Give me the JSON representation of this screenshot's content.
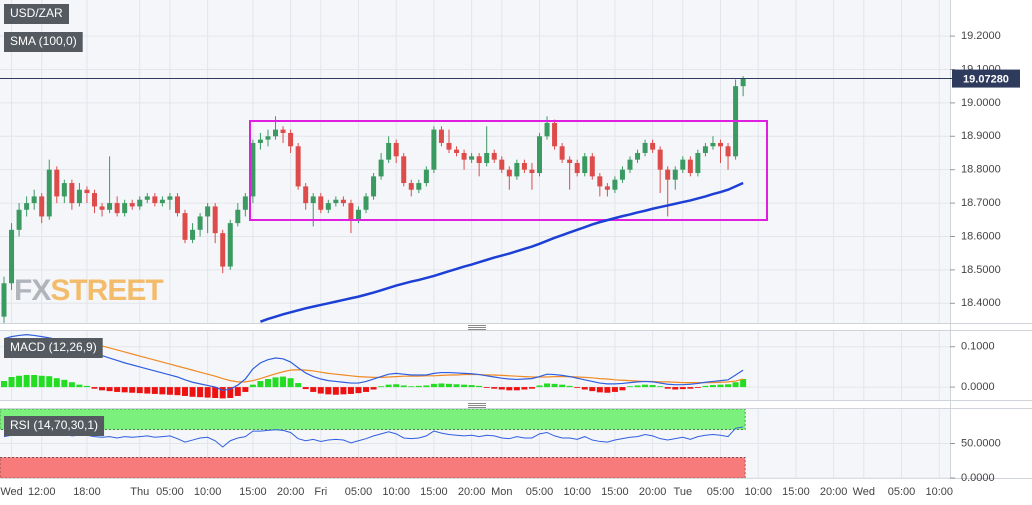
{
  "chart_data": [
    {
      "type": "candlestick",
      "title": "USD/ZAR",
      "watermark": [
        "FX",
        "STREET"
      ],
      "up_color": "#3b9a62",
      "down_color": "#dd4b4b",
      "open": [
        18.36,
        18.46,
        18.62,
        18.68,
        18.7,
        18.72,
        18.66,
        18.8,
        18.72,
        18.76,
        18.7,
        18.74,
        18.73,
        18.69,
        18.68,
        18.7,
        18.67,
        18.7,
        18.69,
        18.71,
        18.72,
        18.7,
        18.71,
        18.72,
        18.67,
        18.59,
        18.62,
        18.66,
        18.69,
        18.61,
        18.51,
        18.64,
        18.68,
        18.72,
        18.88,
        18.89,
        18.9,
        18.92,
        18.91,
        18.87,
        18.75,
        18.7,
        18.72,
        18.68,
        18.7,
        18.71,
        18.7,
        18.65,
        18.68,
        18.72,
        18.78,
        18.83,
        18.88,
        18.84,
        18.76,
        18.74,
        18.76,
        18.8,
        18.92,
        18.88,
        18.86,
        18.85,
        18.83,
        18.84,
        18.82,
        18.85,
        18.83,
        18.8,
        18.78,
        18.82,
        18.8,
        18.79,
        18.9,
        18.94,
        18.87,
        18.83,
        18.82,
        18.79,
        18.84,
        18.78,
        18.75,
        18.74,
        18.77,
        18.8,
        18.83,
        18.85,
        18.88,
        18.86,
        18.8,
        18.77,
        18.8,
        18.83,
        18.79,
        18.85,
        18.87,
        18.88,
        18.87,
        18.84,
        19.05
      ],
      "high": [
        18.48,
        18.64,
        18.7,
        18.72,
        18.74,
        18.73,
        18.83,
        18.81,
        18.77,
        18.77,
        18.76,
        18.75,
        18.74,
        18.7,
        18.84,
        18.72,
        18.71,
        18.71,
        18.72,
        18.73,
        18.73,
        18.72,
        18.73,
        18.73,
        18.68,
        18.64,
        18.67,
        18.7,
        18.7,
        18.62,
        18.65,
        18.7,
        18.73,
        18.89,
        18.91,
        18.92,
        18.96,
        18.93,
        18.92,
        18.88,
        18.76,
        18.73,
        18.73,
        18.71,
        18.72,
        18.72,
        18.71,
        18.69,
        18.73,
        18.79,
        18.85,
        18.9,
        18.89,
        18.85,
        18.77,
        18.77,
        18.81,
        18.93,
        18.93,
        18.92,
        18.87,
        18.86,
        18.85,
        18.85,
        18.93,
        18.86,
        18.84,
        18.81,
        18.83,
        18.83,
        18.82,
        18.91,
        18.96,
        18.95,
        18.88,
        18.84,
        18.83,
        18.85,
        18.85,
        18.79,
        18.76,
        18.78,
        18.81,
        18.84,
        18.86,
        18.89,
        18.89,
        18.87,
        18.81,
        18.81,
        18.84,
        18.84,
        18.86,
        18.88,
        18.9,
        18.89,
        18.88,
        19.07,
        19.08
      ],
      "low": [
        18.34,
        18.44,
        18.6,
        18.66,
        18.68,
        18.64,
        18.65,
        18.7,
        18.7,
        18.68,
        18.69,
        18.7,
        18.67,
        18.66,
        18.67,
        18.66,
        18.66,
        18.68,
        18.68,
        18.7,
        18.69,
        18.69,
        18.68,
        18.66,
        18.58,
        18.58,
        18.6,
        18.61,
        18.58,
        18.49,
        18.5,
        18.63,
        18.66,
        18.7,
        18.86,
        18.87,
        18.89,
        18.88,
        18.85,
        18.74,
        18.68,
        18.63,
        18.67,
        18.67,
        18.69,
        18.69,
        18.61,
        18.64,
        18.67,
        18.71,
        18.77,
        18.82,
        18.82,
        18.75,
        18.72,
        18.73,
        18.75,
        18.79,
        18.87,
        18.85,
        18.84,
        18.8,
        18.82,
        18.78,
        18.81,
        18.82,
        18.79,
        18.74,
        18.77,
        18.79,
        18.74,
        18.78,
        18.89,
        18.86,
        18.82,
        18.74,
        18.78,
        18.78,
        18.77,
        18.72,
        18.72,
        18.73,
        18.76,
        18.79,
        18.82,
        18.84,
        18.85,
        18.73,
        18.66,
        18.74,
        18.79,
        18.78,
        18.78,
        18.84,
        18.86,
        18.82,
        18.8,
        18.83,
        19.02
      ],
      "close": [
        18.46,
        18.62,
        18.68,
        18.7,
        18.72,
        18.66,
        18.8,
        18.72,
        18.76,
        18.7,
        18.74,
        18.73,
        18.69,
        18.68,
        18.7,
        18.67,
        18.7,
        18.69,
        18.71,
        18.72,
        18.7,
        18.71,
        18.72,
        18.67,
        18.59,
        18.62,
        18.66,
        18.69,
        18.61,
        18.51,
        18.64,
        18.68,
        18.72,
        18.88,
        18.89,
        18.9,
        18.92,
        18.91,
        18.87,
        18.75,
        18.7,
        18.72,
        18.68,
        18.7,
        18.71,
        18.7,
        18.65,
        18.68,
        18.72,
        18.78,
        18.83,
        18.88,
        18.84,
        18.76,
        18.74,
        18.76,
        18.8,
        18.92,
        18.88,
        18.86,
        18.85,
        18.83,
        18.84,
        18.82,
        18.85,
        18.83,
        18.8,
        18.78,
        18.82,
        18.8,
        18.79,
        18.9,
        18.94,
        18.87,
        18.83,
        18.82,
        18.79,
        18.84,
        18.78,
        18.75,
        18.74,
        18.77,
        18.8,
        18.83,
        18.85,
        18.88,
        18.86,
        18.8,
        18.77,
        18.8,
        18.83,
        18.79,
        18.85,
        18.87,
        18.88,
        18.87,
        18.84,
        19.05,
        19.0728
      ],
      "sma": {
        "name": "SMA (100,0)",
        "color": "#1c3fd6",
        "values": [
          null,
          null,
          null,
          null,
          null,
          null,
          null,
          null,
          null,
          null,
          null,
          null,
          null,
          null,
          null,
          null,
          null,
          null,
          null,
          null,
          null,
          null,
          null,
          null,
          null,
          null,
          null,
          null,
          null,
          null,
          null,
          null,
          null,
          null,
          18.345,
          18.353,
          18.36,
          18.367,
          18.373,
          18.379,
          18.385,
          18.39,
          18.395,
          18.4,
          18.405,
          18.41,
          18.415,
          18.42,
          18.426,
          18.432,
          18.439,
          18.446,
          18.453,
          18.459,
          18.465,
          18.47,
          18.476,
          18.482,
          18.489,
          18.496,
          18.503,
          18.51,
          18.516,
          18.523,
          18.53,
          18.537,
          18.543,
          18.549,
          18.556,
          18.563,
          18.57,
          18.578,
          18.587,
          18.596,
          18.604,
          18.612,
          18.62,
          18.628,
          18.636,
          18.643,
          18.649,
          18.655,
          18.661,
          18.666,
          18.672,
          18.677,
          18.683,
          18.688,
          18.693,
          18.698,
          18.703,
          18.708,
          18.714,
          18.72,
          18.727,
          18.733,
          18.74,
          18.75,
          18.76
        ]
      },
      "last_price": {
        "value": 19.0728,
        "label": "19.07280"
      },
      "last_price_color": "#2f3b5c",
      "ylim": [
        18.341,
        19.308
      ],
      "yticks": [
        {
          "value": 18.4,
          "label": "18.4000"
        },
        {
          "value": 18.5,
          "label": "18.5000"
        },
        {
          "value": 18.6,
          "label": "18.6000"
        },
        {
          "value": 18.7,
          "label": "18.7000"
        },
        {
          "value": 18.8,
          "label": "18.8000"
        },
        {
          "value": 18.9,
          "label": "18.9000"
        },
        {
          "value": 19.0,
          "label": "19.0000"
        },
        {
          "value": 19.1,
          "label": "19.1000"
        },
        {
          "value": 19.2,
          "label": "19.2000"
        }
      ],
      "xlim": [
        0,
        124.5
      ],
      "xticks": [
        {
          "value": 1,
          "label": "Wed"
        },
        {
          "value": 5,
          "label": "12:00"
        },
        {
          "value": 11,
          "label": "18:00"
        },
        {
          "value": 18,
          "label": "Thu"
        },
        {
          "value": 22,
          "label": "05:00"
        },
        {
          "value": 27,
          "label": "10:00"
        },
        {
          "value": 33,
          "label": "15:00"
        },
        {
          "value": 38,
          "label": "20:00"
        },
        {
          "value": 42,
          "label": "Fri"
        },
        {
          "value": 47,
          "label": "05:00"
        },
        {
          "value": 52,
          "label": "10:00"
        },
        {
          "value": 57,
          "label": "15:00"
        },
        {
          "value": 62,
          "label": "20:00"
        },
        {
          "value": 66,
          "label": "Mon"
        },
        {
          "value": 71,
          "label": "05:00"
        },
        {
          "value": 76,
          "label": "10:00"
        },
        {
          "value": 81,
          "label": "15:00"
        },
        {
          "value": 86,
          "label": "20:00"
        },
        {
          "value": 90,
          "label": "Tue"
        },
        {
          "value": 95,
          "label": "05:00"
        },
        {
          "value": 100,
          "label": "10:00"
        },
        {
          "value": 105,
          "label": "15:00"
        },
        {
          "value": 110,
          "label": "20:00"
        },
        {
          "value": 114,
          "label": "Wed"
        },
        {
          "value": 119,
          "label": "05:00"
        },
        {
          "value": 124,
          "label": "10:00"
        }
      ],
      "grid": true
    },
    {
      "type": "macd",
      "title": "MACD (12,26,9)",
      "histogram": {
        "up_color": "#22dd22",
        "down_color": "#ee1111",
        "values": [
          0.015,
          0.025,
          0.028,
          0.03,
          0.03,
          0.028,
          0.027,
          0.022,
          0.018,
          0.012,
          0.006,
          0.003,
          -0.004,
          -0.008,
          -0.01,
          -0.012,
          -0.013,
          -0.014,
          -0.015,
          -0.016,
          -0.017,
          -0.018,
          -0.019,
          -0.02,
          -0.022,
          -0.024,
          -0.025,
          -0.026,
          -0.027,
          -0.028,
          -0.027,
          -0.022,
          -0.012,
          0.006,
          0.015,
          0.02,
          0.024,
          0.026,
          0.022,
          0.01,
          -0.005,
          -0.012,
          -0.016,
          -0.018,
          -0.019,
          -0.018,
          -0.017,
          -0.015,
          -0.012,
          -0.006,
          0.002,
          0.006,
          0.007,
          0.004,
          0.002,
          0.003,
          0.004,
          0.008,
          0.009,
          0.008,
          0.007,
          0.006,
          0.005,
          0.003,
          -0.002,
          -0.004,
          -0.006,
          -0.008,
          -0.008,
          -0.006,
          -0.004,
          0.004,
          0.009,
          0.008,
          0.006,
          0.003,
          -0.002,
          -0.006,
          -0.01,
          -0.013,
          -0.014,
          -0.012,
          -0.008,
          0.002,
          0.004,
          0.006,
          0.005,
          0.002,
          -0.004,
          -0.006,
          -0.005,
          -0.004,
          -0.002,
          0.003,
          0.005,
          0.006,
          0.007,
          0.012,
          0.02
        ]
      },
      "macd": {
        "color": "#2f5fe0",
        "values": [
          0.12,
          0.125,
          0.128,
          0.13,
          0.128,
          0.125,
          0.122,
          0.118,
          0.112,
          0.104,
          0.096,
          0.09,
          0.084,
          0.078,
          0.072,
          0.066,
          0.06,
          0.055,
          0.05,
          0.045,
          0.04,
          0.035,
          0.03,
          0.025,
          0.018,
          0.012,
          0.008,
          0.004,
          0.0,
          -0.008,
          -0.005,
          0.005,
          0.02,
          0.045,
          0.06,
          0.068,
          0.072,
          0.07,
          0.062,
          0.048,
          0.035,
          0.026,
          0.02,
          0.016,
          0.014,
          0.012,
          0.01,
          0.01,
          0.014,
          0.02,
          0.026,
          0.032,
          0.034,
          0.032,
          0.03,
          0.03,
          0.03,
          0.034,
          0.036,
          0.036,
          0.035,
          0.034,
          0.033,
          0.031,
          0.028,
          0.025,
          0.022,
          0.02,
          0.019,
          0.02,
          0.021,
          0.026,
          0.032,
          0.031,
          0.029,
          0.026,
          0.022,
          0.018,
          0.014,
          0.01,
          0.008,
          0.008,
          0.009,
          0.011,
          0.013,
          0.014,
          0.013,
          0.01,
          0.007,
          0.006,
          0.006,
          0.007,
          0.009,
          0.012,
          0.014,
          0.016,
          0.018,
          0.03,
          0.042
        ]
      },
      "signal": {
        "color": "#f08a24",
        "values": [
          0.105,
          0.108,
          0.111,
          0.114,
          0.116,
          0.118,
          0.119,
          0.119,
          0.118,
          0.116,
          0.113,
          0.11,
          0.106,
          0.102,
          0.097,
          0.092,
          0.087,
          0.082,
          0.077,
          0.072,
          0.067,
          0.062,
          0.057,
          0.052,
          0.047,
          0.042,
          0.037,
          0.032,
          0.027,
          0.021,
          0.016,
          0.013,
          0.013,
          0.016,
          0.021,
          0.027,
          0.033,
          0.038,
          0.042,
          0.043,
          0.042,
          0.04,
          0.037,
          0.034,
          0.032,
          0.03,
          0.028,
          0.026,
          0.025,
          0.024,
          0.024,
          0.025,
          0.026,
          0.027,
          0.027,
          0.027,
          0.028,
          0.028,
          0.029,
          0.03,
          0.03,
          0.031,
          0.031,
          0.031,
          0.03,
          0.03,
          0.029,
          0.028,
          0.027,
          0.026,
          0.025,
          0.025,
          0.025,
          0.026,
          0.026,
          0.026,
          0.025,
          0.024,
          0.023,
          0.021,
          0.02,
          0.018,
          0.017,
          0.016,
          0.015,
          0.014,
          0.014,
          0.013,
          0.013,
          0.012,
          0.011,
          0.011,
          0.011,
          0.011,
          0.011,
          0.012,
          0.013,
          0.015,
          0.02
        ]
      },
      "ylim": [
        -0.032,
        0.139
      ],
      "yticks": [
        {
          "value": 0,
          "label": "0.0000"
        },
        {
          "value": 0.1,
          "label": "0.1000"
        }
      ],
      "grid": true
    },
    {
      "type": "rsi",
      "title": "RSI (14,70,30,1)",
      "color": "#2f5fe0",
      "values": [
        60,
        62,
        64,
        64,
        65,
        63,
        66,
        63,
        64,
        61,
        62,
        62,
        60,
        59,
        60,
        58,
        60,
        59,
        60,
        61,
        59,
        60,
        61,
        57,
        52,
        55,
        58,
        59,
        54,
        45,
        54,
        58,
        60,
        68,
        68,
        69,
        70,
        69,
        66,
        57,
        54,
        56,
        53,
        55,
        56,
        55,
        51,
        54,
        57,
        61,
        64,
        67,
        64,
        58,
        57,
        58,
        61,
        68,
        65,
        63,
        62,
        61,
        62,
        60,
        62,
        61,
        58,
        57,
        60,
        58,
        58,
        64,
        66,
        61,
        58,
        58,
        56,
        60,
        55,
        53,
        52,
        55,
        57,
        59,
        60,
        63,
        61,
        57,
        55,
        57,
        59,
        56,
        60,
        62,
        63,
        62,
        60,
        72,
        74
      ],
      "bands": [
        {
          "from": 70,
          "to": 100,
          "color": "#7cf07c"
        },
        {
          "from": 0,
          "to": 30,
          "color": "#f77b7b"
        }
      ],
      "ylim": [
        0,
        100
      ],
      "yticks": [
        {
          "value": 0,
          "label": "0.0000"
        },
        {
          "value": 50,
          "label": "50.0000"
        }
      ],
      "grid": true
    }
  ]
}
